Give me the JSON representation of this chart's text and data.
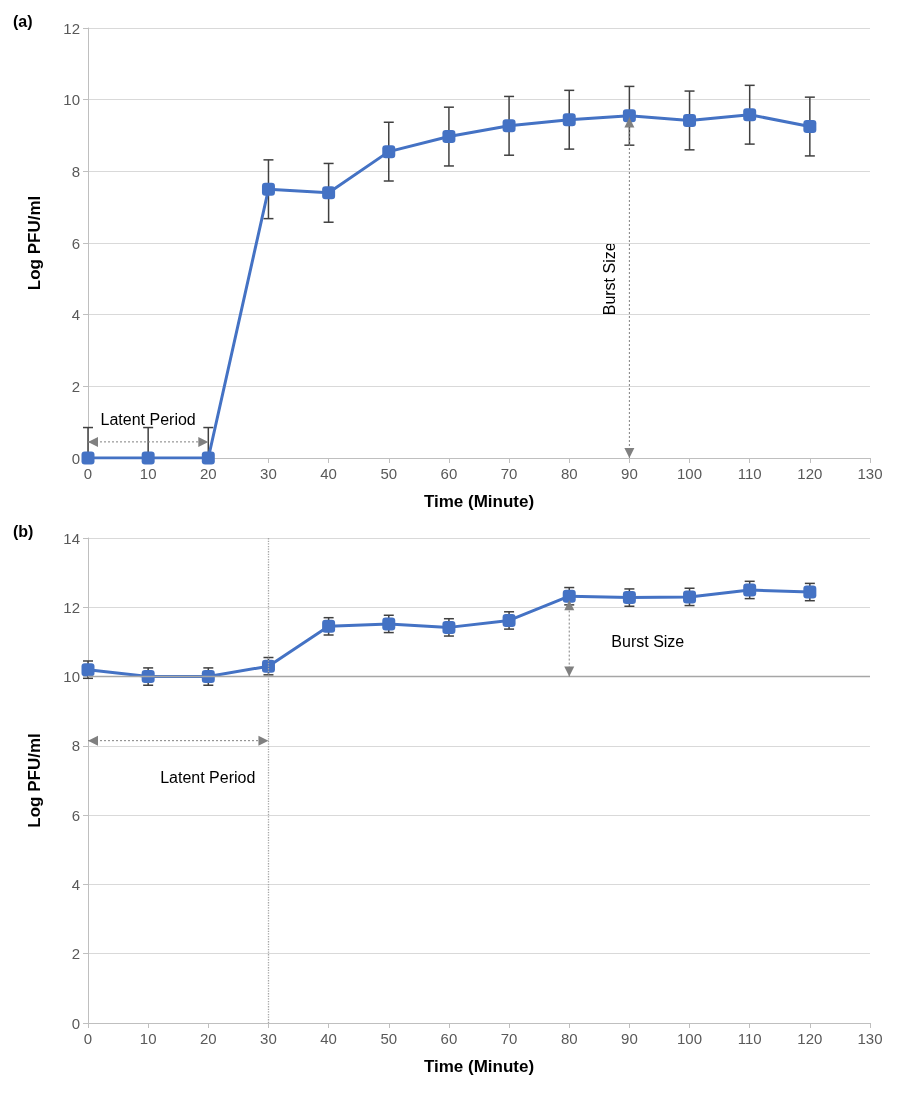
{
  "chart_data": [
    {
      "type": "line",
      "title": "(a)",
      "xlabel": "Time (Minute)",
      "ylabel": "Log PFU/ml",
      "x": [
        0,
        10,
        20,
        30,
        40,
        50,
        60,
        70,
        80,
        90,
        100,
        110,
        120
      ],
      "series": [
        {
          "color": "#4472c4",
          "values": [
            0,
            0,
            0,
            7.5,
            7.4,
            8.55,
            8.97,
            9.27,
            9.44,
            9.55,
            9.42,
            9.58,
            9.25
          ],
          "errors": [
            [
              0,
              0.85
            ],
            [
              0,
              0.85
            ],
            [
              0,
              0.85
            ],
            0.82,
            0.82,
            0.82,
            0.82,
            0.82,
            0.82,
            0.82,
            0.82,
            0.82,
            0.82
          ]
        }
      ],
      "xlim": [
        0,
        130
      ],
      "xticks": [
        0,
        10,
        20,
        30,
        40,
        50,
        60,
        70,
        80,
        90,
        100,
        110,
        120,
        130
      ],
      "ylim": [
        0,
        12
      ],
      "yticks": [
        0,
        2,
        4,
        6,
        8,
        10,
        12
      ],
      "grid": "y",
      "marker": "square",
      "line_style": "solid",
      "annotations": [
        {
          "text": "Latent Period",
          "x": 10,
          "y": 0.45
        },
        "Burst Size"
      ]
    },
    {
      "type": "line",
      "title": "(b)",
      "xlabel": "Time (Minute)",
      "ylabel": "Log PFU/ml",
      "x": [
        0,
        10,
        20,
        30,
        40,
        50,
        60,
        70,
        80,
        90,
        100,
        110,
        120
      ],
      "series": [
        {
          "color": "#4472c4",
          "values": [
            10.2,
            10.0,
            10.0,
            10.3,
            11.45,
            11.52,
            11.42,
            11.62,
            12.32,
            12.28,
            12.3,
            12.5,
            12.44
          ],
          "errors": [
            0.25,
            0.25,
            0.25,
            0.25,
            0.25,
            0.25,
            0.25,
            0.25,
            0.25,
            0.25,
            0.25,
            0.25,
            0.25
          ]
        }
      ],
      "xlim": [
        0,
        130
      ],
      "xticks": [
        0,
        10,
        20,
        30,
        40,
        50,
        60,
        70,
        80,
        90,
        100,
        110,
        120,
        130
      ],
      "ylim": [
        0,
        14
      ],
      "yticks": [
        0,
        2,
        4,
        6,
        8,
        10,
        12,
        14
      ],
      "grid": "y",
      "marker": "square",
      "line_style": "solid",
      "ref_lines": [
        {
          "axis": "x",
          "value": 30,
          "line_style": "dotted",
          "color": "#a6a6a6"
        },
        {
          "axis": "y",
          "value": 10,
          "line_style": "solid",
          "color": "#a6a6a6"
        }
      ],
      "annotations": [
        "Latent Period",
        "Burst Size"
      ]
    }
  ]
}
